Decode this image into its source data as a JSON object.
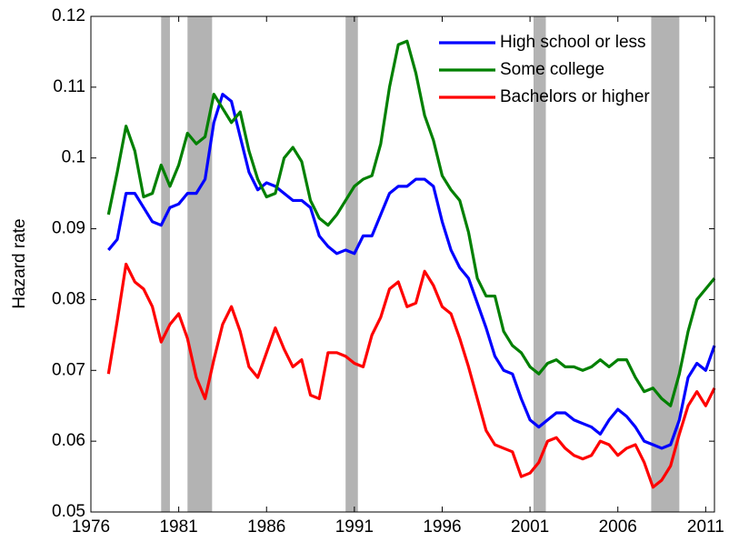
{
  "chart_data": {
    "type": "line",
    "y_label": "Hazard rate",
    "x": [
      1977,
      1977.5,
      1978,
      1978.5,
      1979,
      1979.5,
      1980,
      1980.5,
      1981,
      1981.5,
      1982,
      1982.5,
      1983,
      1983.5,
      1984,
      1984.5,
      1985,
      1985.5,
      1986,
      1986.5,
      1987,
      1987.5,
      1988,
      1988.5,
      1989,
      1989.5,
      1990,
      1990.5,
      1991,
      1991.5,
      1992,
      1992.5,
      1993,
      1993.5,
      1994,
      1994.5,
      1995,
      1995.5,
      1996,
      1996.5,
      1997,
      1997.5,
      1998,
      1998.5,
      1999,
      1999.5,
      2000,
      2000.5,
      2001,
      2001.5,
      2002,
      2002.5,
      2003,
      2003.5,
      2004,
      2004.5,
      2005,
      2005.5,
      2006,
      2006.5,
      2007,
      2007.5,
      2008,
      2008.5,
      2009,
      2009.5,
      2010,
      2010.5,
      2011,
      2011.5
    ],
    "series": [
      {
        "name": "High school or less",
        "color": "#0000ff",
        "values": [
          0.087,
          0.0885,
          0.095,
          0.095,
          0.093,
          0.091,
          0.0905,
          0.093,
          0.0935,
          0.095,
          0.095,
          0.097,
          0.105,
          0.109,
          0.108,
          0.103,
          0.098,
          0.0955,
          0.0965,
          0.096,
          0.095,
          0.094,
          0.094,
          0.093,
          0.089,
          0.0875,
          0.0865,
          0.087,
          0.0865,
          0.089,
          0.089,
          0.092,
          0.095,
          0.096,
          0.096,
          0.097,
          0.097,
          0.096,
          0.091,
          0.087,
          0.0845,
          0.083,
          0.0795,
          0.076,
          0.072,
          0.07,
          0.0695,
          0.066,
          0.063,
          0.062,
          0.063,
          0.064,
          0.064,
          0.063,
          0.0625,
          0.062,
          0.061,
          0.063,
          0.0645,
          0.0635,
          0.062,
          0.06,
          0.0595,
          0.059,
          0.0595,
          0.063,
          0.069,
          0.071,
          0.07,
          0.0735
        ]
      },
      {
        "name": "Some college",
        "color": "#008000",
        "values": [
          0.092,
          0.098,
          0.1045,
          0.101,
          0.0945,
          0.095,
          0.099,
          0.096,
          0.099,
          0.1035,
          0.102,
          0.103,
          0.109,
          0.107,
          0.105,
          0.1065,
          0.101,
          0.097,
          0.0945,
          0.095,
          0.1,
          0.1015,
          0.0995,
          0.094,
          0.0915,
          0.0905,
          0.092,
          0.094,
          0.096,
          0.097,
          0.0975,
          0.102,
          0.11,
          0.116,
          0.1165,
          0.112,
          0.106,
          0.1025,
          0.0975,
          0.0955,
          0.094,
          0.0895,
          0.083,
          0.0805,
          0.0805,
          0.0755,
          0.0735,
          0.0725,
          0.0705,
          0.0695,
          0.071,
          0.0715,
          0.0705,
          0.0705,
          0.07,
          0.0705,
          0.0715,
          0.0705,
          0.0715,
          0.0715,
          0.069,
          0.067,
          0.0675,
          0.066,
          0.065,
          0.0695,
          0.0755,
          0.08,
          0.0815,
          0.083
        ]
      },
      {
        "name": "Bachelors or higher",
        "color": "#ff0000",
        "values": [
          0.0695,
          0.077,
          0.085,
          0.0825,
          0.0815,
          0.079,
          0.074,
          0.0765,
          0.078,
          0.0745,
          0.069,
          0.066,
          0.0715,
          0.0765,
          0.079,
          0.0755,
          0.0705,
          0.069,
          0.0725,
          0.076,
          0.073,
          0.0705,
          0.0715,
          0.0665,
          0.066,
          0.0725,
          0.0725,
          0.072,
          0.071,
          0.0705,
          0.075,
          0.0775,
          0.0815,
          0.0825,
          0.079,
          0.0795,
          0.084,
          0.082,
          0.079,
          0.078,
          0.0745,
          0.0705,
          0.066,
          0.0615,
          0.0595,
          0.059,
          0.0585,
          0.055,
          0.0555,
          0.057,
          0.06,
          0.0605,
          0.059,
          0.058,
          0.0575,
          0.058,
          0.06,
          0.0595,
          0.058,
          0.059,
          0.0595,
          0.057,
          0.0535,
          0.0545,
          0.0565,
          0.061,
          0.065,
          0.067,
          0.065,
          0.0675
        ]
      }
    ],
    "recessions": [
      [
        1980.0,
        1980.5
      ],
      [
        1981.5,
        1982.9
      ],
      [
        1990.5,
        1991.2
      ],
      [
        2001.2,
        2001.9
      ],
      [
        2007.9,
        2009.5
      ]
    ],
    "recession_color": "#b3b3b3",
    "xlim": [
      1976,
      2011.5
    ],
    "xticks": [
      1976,
      1981,
      1986,
      1991,
      1996,
      2001,
      2006,
      2011
    ],
    "ylim": [
      0.05,
      0.12
    ],
    "yticks": [
      0.05,
      0.06,
      0.07,
      0.08,
      0.09,
      0.1,
      0.11,
      0.12
    ],
    "legend": "upper right"
  }
}
